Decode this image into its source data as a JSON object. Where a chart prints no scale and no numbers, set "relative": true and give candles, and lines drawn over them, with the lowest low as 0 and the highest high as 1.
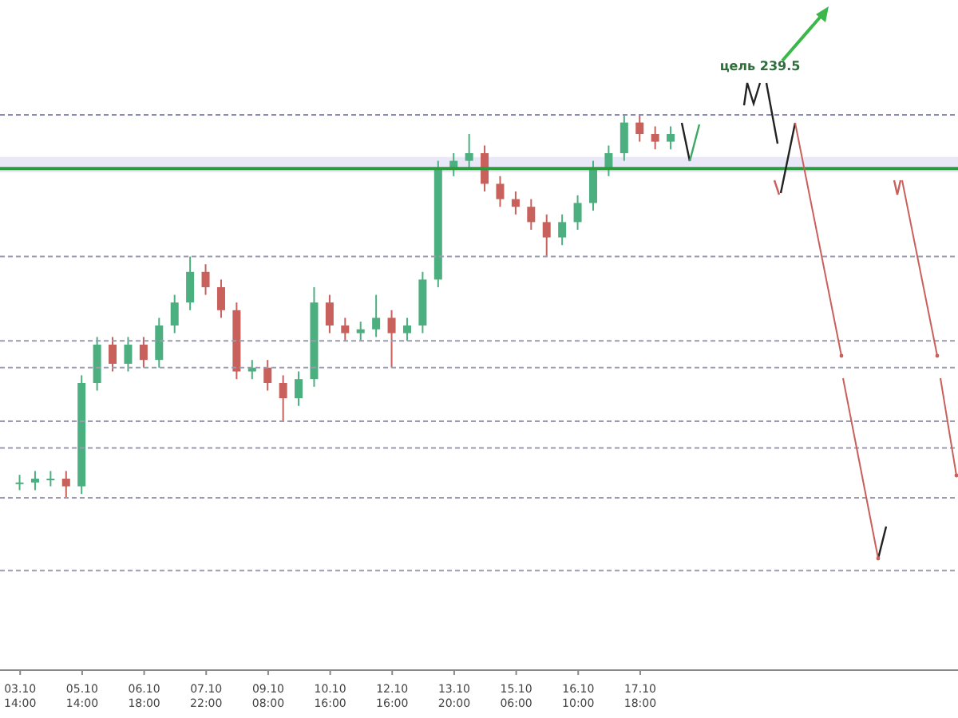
{
  "chart_data": {
    "type": "candlestick",
    "relative": true,
    "categories": [
      "03.10\n14:00",
      null,
      null,
      null,
      "05.10\n14:00",
      null,
      null,
      null,
      "06.10\n18:00",
      null,
      null,
      null,
      "07.10\n22:00",
      null,
      null,
      null,
      "09.10\n08:00",
      null,
      null,
      null,
      "10.10\n16:00",
      null,
      null,
      null,
      "12.10\n16:00",
      null,
      null,
      null,
      "13.10\n20:00",
      null,
      null,
      null,
      "15.10\n06:00",
      null,
      null,
      null,
      "16.10\n10:00",
      null,
      null,
      null,
      "17.10\n18:00",
      null,
      null,
      null,
      null,
      null,
      null,
      null,
      null,
      null,
      null,
      null,
      null,
      null,
      null,
      null,
      null,
      null,
      null,
      null,
      null
    ],
    "ohlc": [
      [
        0.04,
        0.06,
        0.02,
        0.04
      ],
      [
        0.04,
        0.07,
        0.02,
        0.05
      ],
      [
        0.05,
        0.07,
        0.03,
        0.05
      ],
      [
        0.05,
        0.07,
        0,
        0.03
      ],
      [
        0.03,
        0.32,
        0.01,
        0.3
      ],
      [
        0.3,
        0.42,
        0.28,
        0.4
      ],
      [
        0.4,
        0.42,
        0.33,
        0.35
      ],
      [
        0.35,
        0.42,
        0.33,
        0.4
      ],
      [
        0.4,
        0.42,
        0.34,
        0.36
      ],
      [
        0.36,
        0.47,
        0.34,
        0.45
      ],
      [
        0.45,
        0.53,
        0.43,
        0.51
      ],
      [
        0.51,
        0.63,
        0.49,
        0.59
      ],
      [
        0.59,
        0.61,
        0.53,
        0.55
      ],
      [
        0.55,
        0.57,
        0.47,
        0.49
      ],
      [
        0.49,
        0.51,
        0.31,
        0.33
      ],
      [
        0.33,
        0.36,
        0.31,
        0.34
      ],
      [
        0.34,
        0.36,
        0.28,
        0.3
      ],
      [
        0.3,
        0.32,
        0.2,
        0.26
      ],
      [
        0.26,
        0.33,
        0.24,
        0.31
      ],
      [
        0.31,
        0.55,
        0.29,
        0.51
      ],
      [
        0.51,
        0.53,
        0.43,
        0.45
      ],
      [
        0.45,
        0.47,
        0.41,
        0.43
      ],
      [
        0.43,
        0.46,
        0.41,
        0.44
      ],
      [
        0.44,
        0.53,
        0.42,
        0.47
      ],
      [
        0.47,
        0.49,
        0.34,
        0.43
      ],
      [
        0.43,
        0.47,
        0.41,
        0.45
      ],
      [
        0.45,
        0.59,
        0.43,
        0.57
      ],
      [
        0.57,
        0.88,
        0.55,
        0.86
      ],
      [
        0.86,
        0.9,
        0.84,
        0.88
      ],
      [
        0.88,
        0.95,
        0.86,
        0.9
      ],
      [
        0.9,
        0.92,
        0.8,
        0.82
      ],
      [
        0.82,
        0.84,
        0.76,
        0.78
      ],
      [
        0.78,
        0.8,
        0.74,
        0.76
      ],
      [
        0.76,
        0.78,
        0.7,
        0.72
      ],
      [
        0.72,
        0.74,
        0.63,
        0.68
      ],
      [
        0.68,
        0.74,
        0.66,
        0.72
      ],
      [
        0.72,
        0.79,
        0.7,
        0.77
      ],
      [
        0.77,
        0.88,
        0.75,
        0.86
      ],
      [
        0.86,
        0.92,
        0.84,
        0.9
      ],
      [
        0.9,
        1,
        0.88,
        0.98
      ],
      [
        0.98,
        1,
        0.93,
        0.95
      ],
      [
        0.95,
        0.97,
        0.91,
        0.93
      ],
      [
        0.93,
        0.97,
        0.91,
        0.95
      ],
      null,
      null,
      null,
      null,
      null,
      null,
      null,
      null,
      null,
      null,
      null,
      null,
      null,
      null,
      null,
      null,
      null,
      null
    ],
    "colors": [
      "#4caf7f",
      "#4caf7f",
      "#4caf7f",
      "#c8605c",
      "#4caf7f",
      "#4caf7f",
      "#c8605c",
      "#4caf7f",
      "#c8605c",
      "#4caf7f",
      "#4caf7f",
      "#4caf7f",
      "#c8605c",
      "#c8605c",
      "#c8605c",
      "#4caf7f",
      "#c8605c",
      "#c8605c",
      "#4caf7f",
      "#4caf7f",
      "#c8605c",
      "#c8605c",
      "#4caf7f",
      "#4caf7f",
      "#c8605c",
      "#4caf7f",
      "#4caf7f",
      "#4caf7f",
      "#4caf7f",
      "#4caf7f",
      "#c8605c",
      "#c8605c",
      "#c8605c",
      "#c8605c",
      "#c8605c",
      "#4caf7f",
      "#4caf7f",
      "#4caf7f",
      "#4caf7f",
      "#4caf7f",
      "#c8605c",
      "#c8605c",
      "#4caf7f",
      null,
      null,
      null,
      null,
      null,
      null,
      null,
      null,
      null,
      null,
      null,
      null,
      null,
      null,
      null,
      null,
      null,
      null
    ],
    "bands": [
      {
        "axis": "y",
        "from": 0.85,
        "to": 0.89,
        "color": "#e8e8f8"
      }
    ],
    "ref_lines": [
      {
        "axis": "y",
        "value": 1,
        "color": "#8a8ab8",
        "line_style": "dashed"
      },
      {
        "axis": "y",
        "value": 0.86,
        "color": "#2e9a3e",
        "line_style": "solid"
      },
      {
        "axis": "y",
        "value": 0.63,
        "color": "#9a9ab0",
        "line_style": "dashed"
      },
      {
        "axis": "y",
        "value": 0.41,
        "color": "#9a9ab0",
        "line_style": "dashed"
      },
      {
        "axis": "y",
        "value": 0.34,
        "color": "#9a9ab0",
        "line_style": "dashed"
      },
      {
        "axis": "y",
        "value": 0.2,
        "color": "#9a9ab0",
        "line_style": "dashed"
      },
      {
        "axis": "y",
        "value": 0.13,
        "color": "#9a9ab0",
        "line_style": "dashed"
      },
      {
        "axis": "y",
        "value": 0,
        "color": "#9a9ab0",
        "line_style": "dashed"
      },
      {
        "axis": "y",
        "value": -0.19,
        "color": "#9a9ab0",
        "line_style": "dashed"
      }
    ],
    "annotations": [
      "цель 239.5"
    ]
  }
}
